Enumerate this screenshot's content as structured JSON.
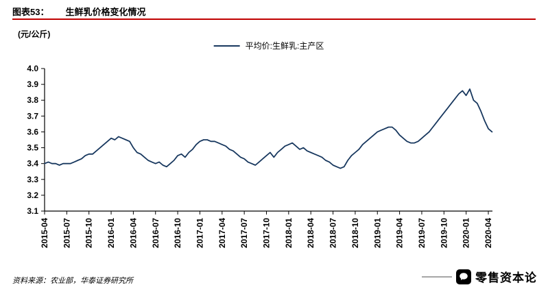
{
  "header": {
    "figure_label": "图表53：",
    "figure_title": "生鲜乳价格变化情况"
  },
  "chart": {
    "unit_label": "(元/公斤)",
    "legend_label": "平均价:生鲜乳:主产区"
  },
  "footer": {
    "source": "资料来源：农业部，华泰证券研究所"
  },
  "watermark": {
    "text": "零售资本论",
    "logo_icon": "wechat-chat-bubble"
  },
  "colors": {
    "accent_red": "#c00000",
    "line_navy": "#17375e",
    "axis_black": "#000000",
    "watermark_gray": "#a6a6a6"
  },
  "chart_data": {
    "type": "line",
    "title": "生鲜乳价格变化情况",
    "ylabel": "(元/公斤)",
    "ylim": [
      3.1,
      4.0
    ],
    "ytick_step": 0.1,
    "grid": false,
    "legend_position": "top-center",
    "x_tick_labels": [
      "2015-04",
      "2015-07",
      "2015-10",
      "2016-01",
      "2016-04",
      "2016-07",
      "2016-10",
      "2017-01",
      "2017-04",
      "2017-07",
      "2017-10",
      "2018-01",
      "2018-04",
      "2018-07",
      "2018-10",
      "2019-01",
      "2019-04",
      "2019-07",
      "2019-10",
      "2020-01",
      "2020-04"
    ],
    "points_per_month": 2,
    "series": [
      {
        "name": "平均价:生鲜乳:主产区",
        "color": "#17375e",
        "values": [
          3.4,
          3.41,
          3.4,
          3.4,
          3.39,
          3.4,
          3.4,
          3.4,
          3.41,
          3.42,
          3.43,
          3.45,
          3.46,
          3.46,
          3.48,
          3.5,
          3.52,
          3.54,
          3.56,
          3.55,
          3.57,
          3.56,
          3.55,
          3.54,
          3.5,
          3.47,
          3.46,
          3.44,
          3.42,
          3.41,
          3.4,
          3.41,
          3.39,
          3.38,
          3.4,
          3.42,
          3.45,
          3.46,
          3.44,
          3.47,
          3.49,
          3.52,
          3.54,
          3.55,
          3.55,
          3.54,
          3.54,
          3.53,
          3.52,
          3.51,
          3.49,
          3.48,
          3.46,
          3.44,
          3.43,
          3.41,
          3.4,
          3.39,
          3.41,
          3.43,
          3.45,
          3.47,
          3.44,
          3.47,
          3.49,
          3.51,
          3.52,
          3.53,
          3.51,
          3.49,
          3.5,
          3.48,
          3.47,
          3.46,
          3.45,
          3.44,
          3.42,
          3.41,
          3.39,
          3.38,
          3.37,
          3.38,
          3.42,
          3.45,
          3.47,
          3.49,
          3.52,
          3.54,
          3.56,
          3.58,
          3.6,
          3.61,
          3.62,
          3.63,
          3.63,
          3.61,
          3.58,
          3.56,
          3.54,
          3.53,
          3.53,
          3.54,
          3.56,
          3.58,
          3.6,
          3.63,
          3.66,
          3.69,
          3.72,
          3.75,
          3.78,
          3.81,
          3.84,
          3.86,
          3.83,
          3.87,
          3.8,
          3.78,
          3.73,
          3.67,
          3.62,
          3.6
        ]
      }
    ]
  }
}
